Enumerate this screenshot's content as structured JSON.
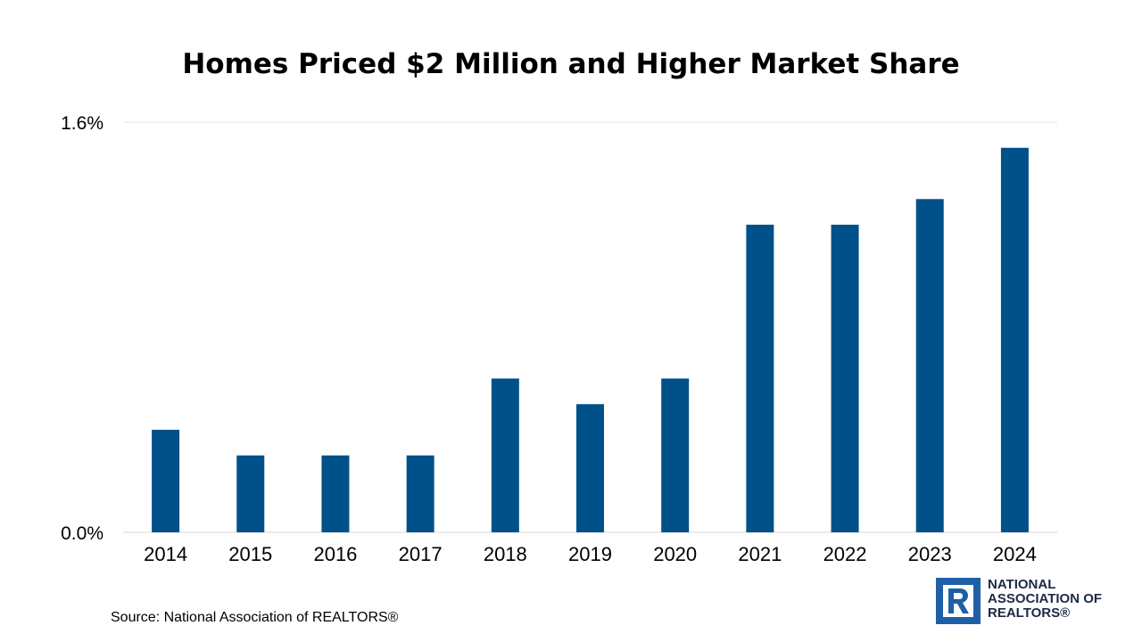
{
  "chart_data": {
    "type": "bar",
    "title": "Homes Priced $2 Million and Higher Market Share",
    "categories": [
      "2014",
      "2015",
      "2016",
      "2017",
      "2018",
      "2019",
      "2020",
      "2021",
      "2022",
      "2023",
      "2024"
    ],
    "values": [
      0.4,
      0.3,
      0.3,
      0.3,
      0.6,
      0.5,
      0.6,
      1.2,
      1.2,
      1.3,
      1.5
    ],
    "y_tick_labels": [
      "0.0%",
      "1.6%"
    ],
    "ylim": [
      0,
      1.6
    ],
    "unit": "%",
    "grid": true,
    "bar_color": "#00518a",
    "xlabel": "",
    "ylabel": ""
  },
  "source": "Source: National Association of REALTORS®",
  "logo": {
    "line1": "NATIONAL",
    "line2": "ASSOCIATION OF",
    "line3": "REALTORS®",
    "color": "#1f5fa6"
  }
}
